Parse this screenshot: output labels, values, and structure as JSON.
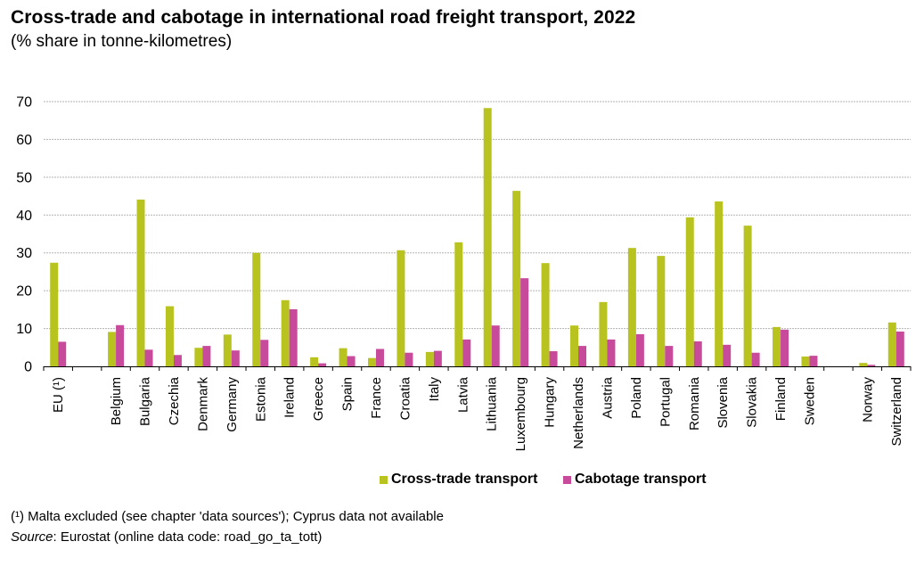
{
  "header": {
    "title": "Cross-trade and cabotage in international road freight transport, 2022",
    "subtitle": "(% share in tonne-kilometres)"
  },
  "chart_data": {
    "type": "bar",
    "title": "Cross-trade and cabotage in international road freight transport, 2022",
    "subtitle": "(% share in tonne-kilometres)",
    "xlabel": "",
    "ylabel": "",
    "ylim": [
      0,
      70
    ],
    "yticks": [
      0,
      10,
      20,
      30,
      40,
      50,
      60,
      70
    ],
    "grid": true,
    "legend_position": "bottom-center",
    "categories": [
      "EU (¹)",
      "",
      "Belgium",
      "Bulgaria",
      "Czechia",
      "Denmark",
      "Germany",
      "Estonia",
      "Ireland",
      "Greece",
      "Spain",
      "France",
      "Croatia",
      "Italy",
      "Latvia",
      "Lithuania",
      "Luxembourg",
      "Hungary",
      "Netherlands",
      "Austria",
      "Poland",
      "Portugal",
      "Romania",
      "Slovenia",
      "Slovakia",
      "Finland",
      "Sweden",
      "",
      "Norway",
      "Switzerland"
    ],
    "series": [
      {
        "name": "Cross-trade transport",
        "color": "#B9C31F",
        "values": [
          27.4,
          null,
          9.1,
          44.1,
          15.9,
          4.9,
          8.4,
          30.0,
          17.5,
          2.4,
          4.8,
          2.2,
          30.7,
          3.8,
          32.8,
          68.3,
          46.4,
          27.3,
          10.8,
          17.0,
          31.3,
          29.2,
          39.4,
          43.6,
          37.2,
          10.4,
          2.6,
          null,
          0.9,
          11.6
        ]
      },
      {
        "name": "Cabotage transport",
        "color": "#C84B9B",
        "values": [
          6.5,
          null,
          10.9,
          4.4,
          3.0,
          5.4,
          4.2,
          7.0,
          15.1,
          0.8,
          2.7,
          4.6,
          3.6,
          4.1,
          7.1,
          10.8,
          23.3,
          4.0,
          5.4,
          7.1,
          8.5,
          5.4,
          6.6,
          5.7,
          3.6,
          9.7,
          2.8,
          null,
          0.4,
          9.2
        ]
      }
    ]
  },
  "legend": {
    "items": [
      {
        "label": "Cross-trade transport",
        "color": "#B9C31F"
      },
      {
        "label": "Cabotage transport",
        "color": "#C84B9B"
      }
    ]
  },
  "footer": {
    "footnote": "(¹) Malta excluded (see chapter 'data sources'); Cyprus data not available",
    "source_label": "Source",
    "source_text": ": Eurostat (online data code: road_go_ta_tott)"
  }
}
